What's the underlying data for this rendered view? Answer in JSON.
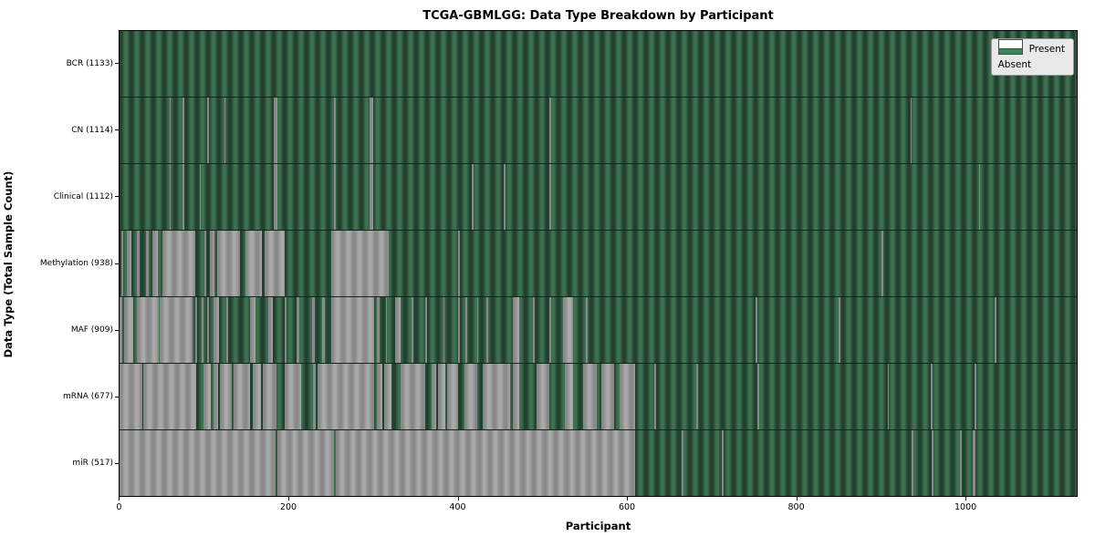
{
  "chart": {
    "title": "TCGA-GBMLGG: Data Type Breakdown by Participant",
    "xlabel": "Participant",
    "ylabel": "Data Type (Total Sample Count)"
  },
  "legend": {
    "present": "Present",
    "absent": "Absent"
  },
  "colors": {
    "present_stripe_dark": "#20402e",
    "present_stripe_light": "#3e7151",
    "absent_stripe_dark": "#888888",
    "absent_stripe_light": "#a9a9a9",
    "legend_present": "#2e8b57",
    "legend_absent": "#ffffff",
    "row_divider": "#15251c"
  },
  "chart_data": {
    "type": "heatmap",
    "title": "TCGA-GBMLGG: Data Type Breakdown by Participant",
    "xlabel": "Participant",
    "ylabel": "Data Type (Total Sample Count)",
    "legend": [
      "Present",
      "Absent"
    ],
    "legend_position": "upper right",
    "n_participants": 1133,
    "x_range": [
      0,
      1133
    ],
    "x_ticks": [
      0,
      200,
      400,
      600,
      800,
      1000
    ],
    "rows": [
      {
        "label": "BCR (1133)",
        "name": "bcr",
        "present_count": 1133,
        "absent_ranges": []
      },
      {
        "label": "CN (1114)",
        "name": "cn",
        "present_count": 1114,
        "absent_ranges": [
          [
            59,
            61
          ],
          [
            75,
            77
          ],
          [
            104,
            105.5
          ],
          [
            124,
            125.5
          ],
          [
            183,
            187
          ],
          [
            254,
            256
          ],
          [
            296,
            300
          ],
          [
            509,
            511
          ],
          [
            936,
            938
          ]
        ]
      },
      {
        "label": "Clinical (1112)",
        "name": "clinical",
        "present_count": 1112,
        "absent_ranges": [
          [
            59,
            61
          ],
          [
            75,
            77
          ],
          [
            95,
            96.5
          ],
          [
            183,
            187
          ],
          [
            254,
            256
          ],
          [
            296,
            300
          ],
          [
            417,
            419
          ],
          [
            455,
            457
          ],
          [
            509,
            511
          ],
          [
            1017,
            1019
          ]
        ]
      },
      {
        "label": "Methylation (938)",
        "name": "methylation",
        "present_count": 938,
        "absent_ranges": [
          [
            2,
            4
          ],
          [
            9,
            14
          ],
          [
            20,
            24
          ],
          [
            31,
            35
          ],
          [
            39,
            45
          ],
          [
            51,
            90
          ],
          [
            100,
            103
          ],
          [
            107,
            112
          ],
          [
            116,
            143
          ],
          [
            149,
            168
          ],
          [
            172,
            195
          ],
          [
            251,
            319
          ],
          [
            401,
            403
          ],
          [
            902,
            904
          ]
        ]
      },
      {
        "label": "MAF (909)",
        "name": "maf",
        "present_count": 909,
        "absent_ranges": [
          [
            0,
            3
          ],
          [
            5,
            16
          ],
          [
            20,
            46
          ],
          [
            48,
            86
          ],
          [
            90,
            92
          ],
          [
            97,
            99
          ],
          [
            104,
            106
          ],
          [
            111,
            118
          ],
          [
            126,
            128
          ],
          [
            154,
            161
          ],
          [
            176,
            181
          ],
          [
            195,
            198
          ],
          [
            210,
            213
          ],
          [
            228,
            231
          ],
          [
            240,
            243
          ],
          [
            251,
            301
          ],
          [
            305,
            308
          ],
          [
            315,
            317
          ],
          [
            326,
            333
          ],
          [
            346,
            348
          ],
          [
            362,
            364
          ],
          [
            383,
            385
          ],
          [
            401,
            403
          ],
          [
            409,
            412
          ],
          [
            423,
            425
          ],
          [
            434,
            436
          ],
          [
            466,
            473
          ],
          [
            489,
            491
          ],
          [
            509,
            511
          ],
          [
            525,
            537
          ],
          [
            552,
            554
          ],
          [
            753,
            755
          ],
          [
            851,
            853
          ],
          [
            1036,
            1038
          ]
        ]
      },
      {
        "label": "mRNA (677)",
        "name": "mrna",
        "present_count": 677,
        "absent_ranges": [
          [
            0,
            27
          ],
          [
            28,
            91
          ],
          [
            99,
            108
          ],
          [
            111,
            117
          ],
          [
            119,
            133
          ],
          [
            135,
            154
          ],
          [
            158,
            167
          ],
          [
            170,
            186
          ],
          [
            195,
            215
          ],
          [
            229,
            232
          ],
          [
            234,
            301
          ],
          [
            305,
            311
          ],
          [
            313,
            322
          ],
          [
            333,
            362
          ],
          [
            369,
            375
          ],
          [
            377,
            386
          ],
          [
            388,
            401
          ],
          [
            408,
            423
          ],
          [
            430,
            462
          ],
          [
            466,
            473
          ],
          [
            494,
            509
          ],
          [
            527,
            537
          ],
          [
            549,
            565
          ],
          [
            570,
            585
          ],
          [
            592,
            610
          ],
          [
            633,
            635
          ],
          [
            683,
            685
          ],
          [
            755,
            757
          ],
          [
            909,
            911
          ],
          [
            960,
            962
          ],
          [
            1012,
            1014
          ]
        ]
      },
      {
        "label": "miR (517)",
        "name": "mir",
        "present_count": 517,
        "absent_ranges": [
          [
            0,
            185
          ],
          [
            187,
            254
          ],
          [
            256,
            610
          ],
          [
            665,
            667
          ],
          [
            713,
            715
          ],
          [
            938,
            940
          ],
          [
            961,
            963
          ],
          [
            995,
            997
          ],
          [
            1010,
            1013
          ]
        ]
      }
    ]
  }
}
